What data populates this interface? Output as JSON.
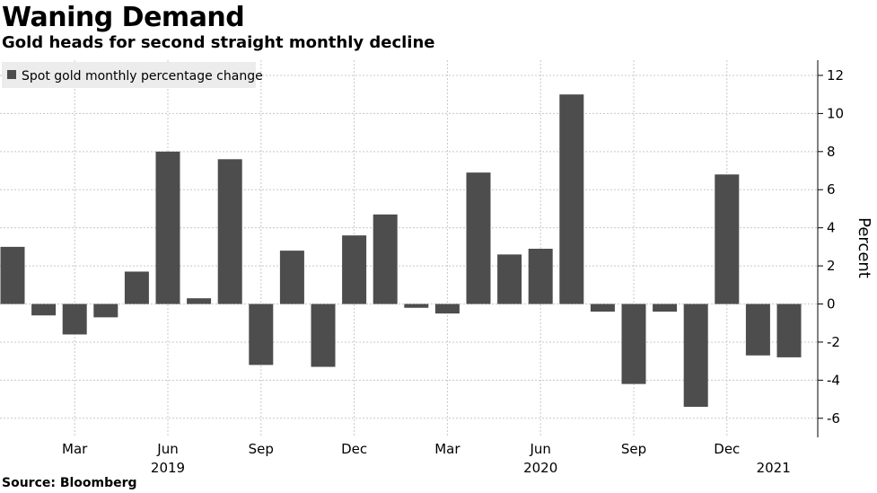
{
  "chart_data": {
    "type": "bar",
    "title": "Waning Demand",
    "subtitle": "Gold heads for second straight monthly decline",
    "legend": "Spot gold monthly percentage change",
    "ylabel": "Percent",
    "source": "Source: Bloomberg",
    "ylim": [
      -7,
      12.8
    ],
    "yticks": [
      -6,
      -4,
      -2,
      0,
      2,
      4,
      6,
      8,
      10,
      12
    ],
    "categories": [
      "Jan 2019",
      "Feb 2019",
      "Mar 2019",
      "Apr 2019",
      "May 2019",
      "Jun 2019",
      "Jul 2019",
      "Aug 2019",
      "Sep 2019",
      "Oct 2019",
      "Nov 2019",
      "Dec 2019",
      "Jan 2020",
      "Feb 2020",
      "Mar 2020",
      "Apr 2020",
      "May 2020",
      "Jun 2020",
      "Jul 2020",
      "Aug 2020",
      "Sep 2020",
      "Oct 2020",
      "Nov 2020",
      "Dec 2020",
      "Jan 2021",
      "Feb 2021"
    ],
    "values": [
      3.0,
      -0.6,
      -1.6,
      -0.7,
      1.7,
      8.0,
      0.3,
      7.6,
      -3.2,
      2.8,
      -3.3,
      3.6,
      4.7,
      -0.2,
      -0.5,
      6.9,
      2.6,
      2.9,
      11.0,
      -0.4,
      -4.2,
      -0.4,
      -5.4,
      6.8,
      -2.7,
      -2.8
    ],
    "xtick_labels": [
      {
        "index": 2,
        "label": "Mar"
      },
      {
        "index": 5,
        "label": "Jun"
      },
      {
        "index": 8,
        "label": "Sep"
      },
      {
        "index": 11,
        "label": "Dec"
      },
      {
        "index": 14,
        "label": "Mar"
      },
      {
        "index": 17,
        "label": "Jun"
      },
      {
        "index": 20,
        "label": "Sep"
      },
      {
        "index": 23,
        "label": "Dec"
      }
    ],
    "year_labels": [
      {
        "index": 5,
        "label": "2019"
      },
      {
        "index": 17,
        "label": "2020"
      },
      {
        "index": 24.5,
        "label": "2021"
      }
    ],
    "bar_color": "#4d4d4d",
    "legend_bg": "#ececec",
    "grid_color": "#c8c8c8"
  }
}
